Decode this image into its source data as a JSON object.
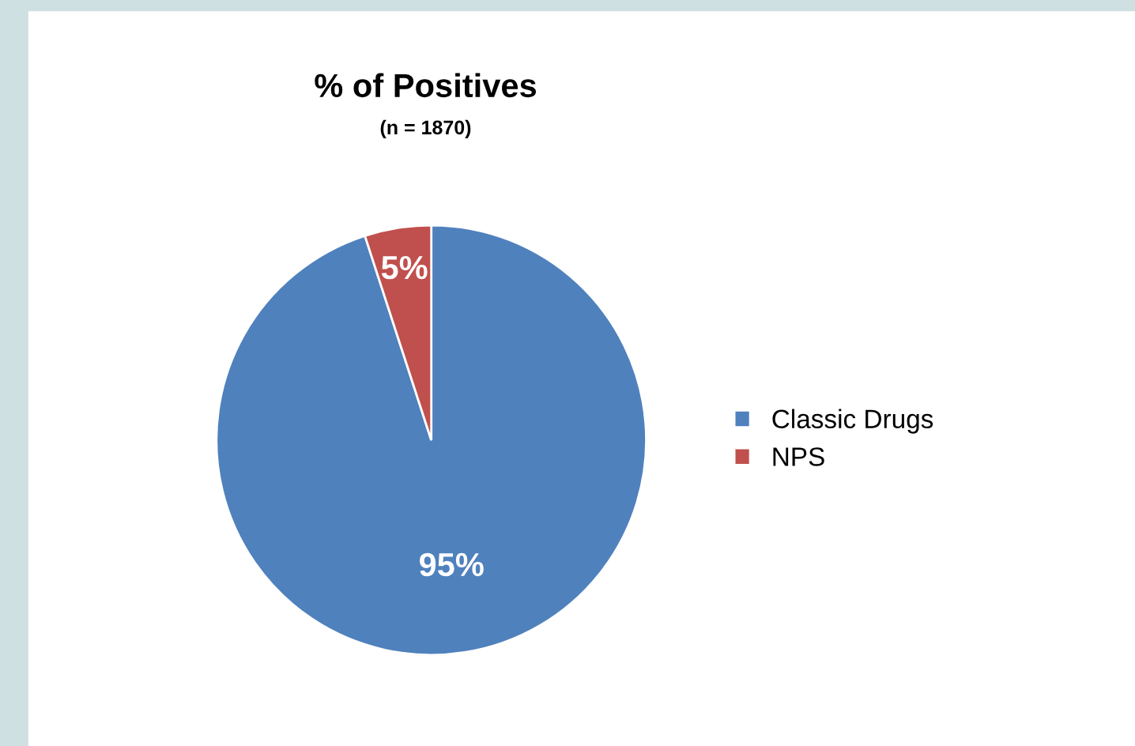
{
  "chart_data": {
    "type": "pie",
    "title": "% of Positives",
    "subtitle": "(n = 1870)",
    "categories": [
      "Classic Drugs",
      "NPS"
    ],
    "values": [
      95,
      5
    ],
    "colors": [
      "#4f81bd",
      "#c0504d"
    ],
    "value_labels": [
      "95%",
      "5%"
    ],
    "legend": "right"
  }
}
